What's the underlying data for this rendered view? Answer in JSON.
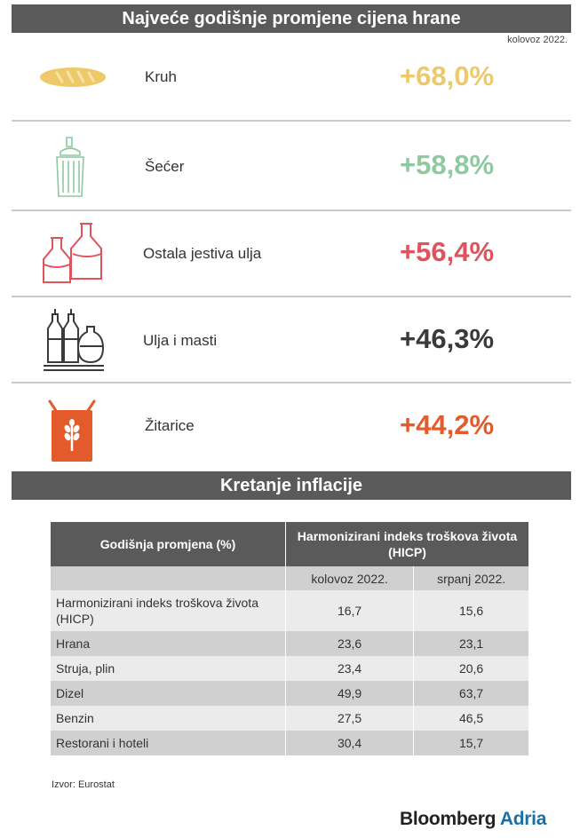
{
  "header": {
    "title": "Najveće godišnje promjene cijena hrane",
    "date": "kolovoz 2022."
  },
  "items": [
    {
      "label": "Kruh",
      "value": "+68,0%",
      "color": "#edc96a",
      "icon": "bread-icon"
    },
    {
      "label": "Šećer",
      "value": "+58,8%",
      "color": "#8ec9a0",
      "icon": "sugar-dispenser-icon"
    },
    {
      "label": "Ostala jestiva ulja",
      "value": "+56,4%",
      "color": "#e0525c",
      "icon": "oil-bottles-icon"
    },
    {
      "label": "Ulja i masti",
      "value": "+46,3%",
      "color": "#3a3a3a",
      "icon": "oil-cruets-icon"
    },
    {
      "label": "Žitarice",
      "value": "+44,2%",
      "color": "#e35a2b",
      "icon": "grain-bag-icon"
    }
  ],
  "section2": {
    "title": "Kretanje inflacije"
  },
  "table": {
    "col1_header": "Godišnja promjena (%)",
    "group_header": "Harmonizirani indeks troškova života (HICP)",
    "subheaders": [
      "kolovoz 2022.",
      "srpanj 2022."
    ],
    "rows": [
      {
        "label": "Harmonizirani indeks troškova života (HICP)",
        "aug": "16,7",
        "jul": "15,6"
      },
      {
        "label": "Hrana",
        "aug": "23,6",
        "jul": "23,1"
      },
      {
        "label": "Struja, plin",
        "aug": "23,4",
        "jul": "20,6"
      },
      {
        "label": "Dizel",
        "aug": "49,9",
        "jul": "63,7"
      },
      {
        "label": "Benzin",
        "aug": "27,5",
        "jul": "46,5"
      },
      {
        "label": "Restorani i hoteli",
        "aug": "30,4",
        "jul": "15,7"
      }
    ]
  },
  "footer": {
    "source": "Izvor: Eurostat",
    "brand1": "Bloomberg",
    "brand2": "Adria"
  },
  "chart_data": {
    "type": "table",
    "title": "Najveće godišnje promjene cijena hrane",
    "categories": [
      "Kruh",
      "Šećer",
      "Ostala jestiva ulja",
      "Ulja i masti",
      "Žitarice"
    ],
    "values": [
      68.0,
      58.8,
      56.4,
      46.3,
      44.2
    ],
    "unit": "%"
  }
}
